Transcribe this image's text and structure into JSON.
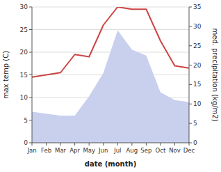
{
  "chart_data": {
    "type": "line",
    "categories": [
      "Jan",
      "Feb",
      "Mar",
      "Apr",
      "May",
      "Jun",
      "Jul",
      "Aug",
      "Sep",
      "Oct",
      "Nov",
      "Dec"
    ],
    "series": [
      {
        "type": "area",
        "axis": "y2",
        "color": "#c8d0ee",
        "values": [
          8.0,
          7.5,
          7.0,
          7.0,
          12.0,
          18.0,
          29.0,
          24.0,
          22.5,
          13.0,
          11.0,
          10.5
        ]
      },
      {
        "type": "line",
        "color": "#cc4444",
        "values": [
          14.5,
          15.0,
          15.5,
          19.5,
          19.0,
          26.0,
          30.0,
          29.5,
          29.5,
          22.5,
          17.0,
          16.5
        ]
      }
    ],
    "xlabel": "date (month)",
    "ylabel": "max temp (C)",
    "y2label": "med. precipitation (kg/m2)",
    "ylim": [
      0,
      30
    ],
    "yticks": [
      0,
      5,
      10,
      15,
      20,
      25,
      30
    ],
    "y2lim": [
      0,
      35
    ],
    "y2ticks": [
      0,
      5,
      10,
      15,
      20,
      25,
      30,
      35
    ],
    "grid": true
  }
}
